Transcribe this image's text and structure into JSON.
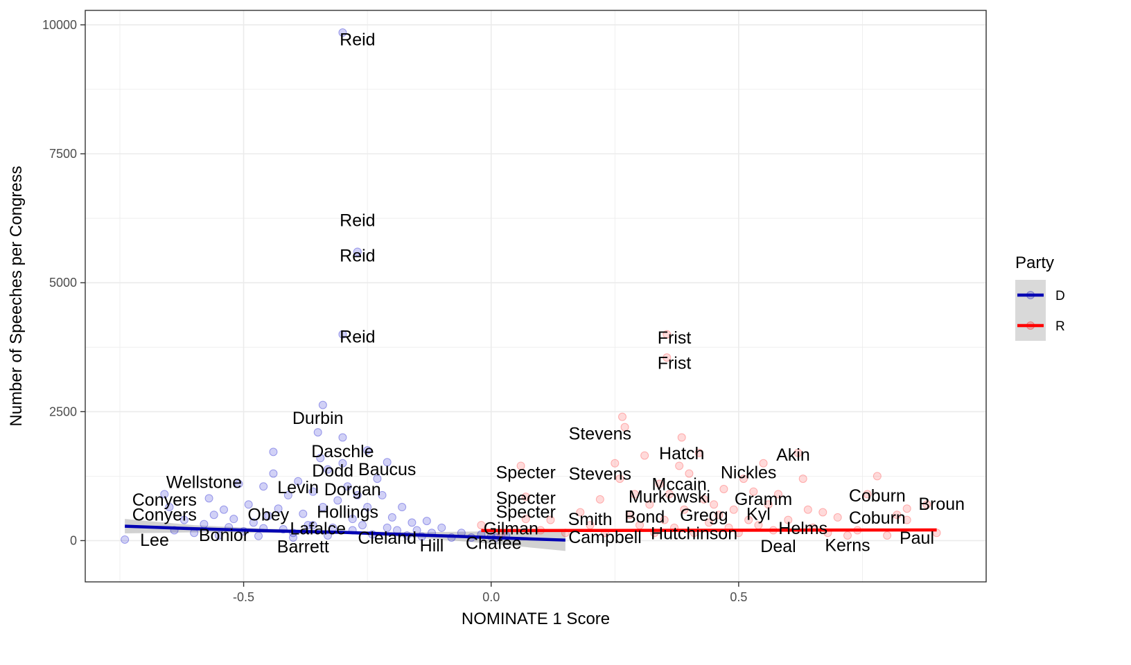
{
  "chart_data": {
    "type": "scatter",
    "xlabel": "NOMINATE 1 Score",
    "ylabel": "Number of Speeches per Congress",
    "xlim": [
      -0.82,
      1.0
    ],
    "ylim": [
      -800,
      10280
    ],
    "x_ticks": [
      -0.5,
      0.0,
      0.5
    ],
    "x_tick_labels": [
      "-0.5",
      "0.0",
      "0.5"
    ],
    "y_ticks": [
      0,
      2500,
      5000,
      7500,
      10000
    ],
    "y_tick_labels": [
      "0",
      "2500",
      "5000",
      "7500",
      "10000"
    ],
    "grid": true,
    "legend": {
      "title": "Party",
      "position": "right",
      "entries": [
        {
          "label": "D",
          "color": "#0000b3"
        },
        {
          "label": "R",
          "color": "#ff0000"
        }
      ]
    },
    "series": [
      {
        "name": "D",
        "color": "#0000b3",
        "point_color": "#0000cc",
        "trend": {
          "x": [
            -0.74,
            -0.6,
            -0.45,
            -0.3,
            -0.15,
            0.0,
            0.15
          ],
          "y": [
            280,
            230,
            190,
            160,
            110,
            60,
            10
          ],
          "ci_halfwidth": [
            140,
            70,
            40,
            30,
            50,
            120,
            210
          ]
        },
        "points": [
          [
            -0.74,
            20
          ],
          [
            -0.66,
            900
          ],
          [
            -0.65,
            650
          ],
          [
            -0.64,
            200
          ],
          [
            -0.62,
            400
          ],
          [
            -0.6,
            150
          ],
          [
            -0.58,
            320
          ],
          [
            -0.57,
            820
          ],
          [
            -0.56,
            500
          ],
          [
            -0.55,
            100
          ],
          [
            -0.54,
            600
          ],
          [
            -0.53,
            260
          ],
          [
            -0.52,
            420
          ],
          [
            -0.51,
            1100
          ],
          [
            -0.5,
            180
          ],
          [
            -0.49,
            700
          ],
          [
            -0.48,
            350
          ],
          [
            -0.47,
            90
          ],
          [
            -0.46,
            1050
          ],
          [
            -0.45,
            480
          ],
          [
            -0.44,
            1720
          ],
          [
            -0.44,
            1300
          ],
          [
            -0.43,
            620
          ],
          [
            -0.42,
            220
          ],
          [
            -0.41,
            880
          ],
          [
            -0.4,
            150
          ],
          [
            -0.39,
            1150
          ],
          [
            -0.38,
            520
          ],
          [
            -0.37,
            300
          ],
          [
            -0.36,
            950
          ],
          [
            -0.35,
            2100
          ],
          [
            -0.345,
            1600
          ],
          [
            -0.34,
            650
          ],
          [
            -0.33,
            1380
          ],
          [
            -0.32,
            250
          ],
          [
            -0.31,
            780
          ],
          [
            -0.3,
            2000
          ],
          [
            -0.3,
            1500
          ],
          [
            -0.29,
            1050
          ],
          [
            -0.28,
            420
          ],
          [
            -0.27,
            880
          ],
          [
            -0.26,
            300
          ],
          [
            -0.25,
            1750
          ],
          [
            -0.25,
            650
          ],
          [
            -0.24,
            120
          ],
          [
            -0.23,
            1200
          ],
          [
            -0.22,
            880
          ],
          [
            -0.21,
            1520
          ],
          [
            -0.2,
            450
          ],
          [
            -0.19,
            200
          ],
          [
            -0.18,
            650
          ],
          [
            -0.17,
            100
          ],
          [
            -0.16,
            350
          ],
          [
            -0.15,
            200
          ],
          [
            -0.14,
            80
          ],
          [
            -0.13,
            380
          ],
          [
            -0.12,
            150
          ],
          [
            -0.1,
            250
          ],
          [
            -0.08,
            60
          ],
          [
            -0.06,
            150
          ],
          [
            -0.04,
            60
          ],
          [
            -0.02,
            120
          ],
          [
            0.0,
            80
          ],
          [
            0.01,
            60
          ],
          [
            0.03,
            100
          ],
          [
            -0.3,
            9850
          ],
          [
            -0.27,
            5600
          ],
          [
            -0.3,
            4000
          ],
          [
            -0.34,
            2630
          ],
          [
            -0.36,
            300
          ],
          [
            -0.33,
            100
          ],
          [
            -0.4,
            60
          ],
          [
            -0.46,
            240
          ],
          [
            -0.28,
            200
          ],
          [
            -0.21,
            250
          ]
        ]
      },
      {
        "name": "R",
        "color": "#ff0000",
        "point_color": "#ff3333",
        "trend": {
          "x": [
            -0.02,
            0.2,
            0.4,
            0.6,
            0.8,
            0.9
          ],
          "y": [
            195,
            197,
            200,
            203,
            206,
            208
          ],
          "ci_halfwidth": [
            20,
            12,
            10,
            12,
            18,
            22
          ]
        },
        "points": [
          [
            -0.02,
            300
          ],
          [
            0.02,
            120
          ],
          [
            0.06,
            1450
          ],
          [
            0.07,
            850
          ],
          [
            0.07,
            420
          ],
          [
            0.1,
            200
          ],
          [
            0.12,
            400
          ],
          [
            0.15,
            150
          ],
          [
            0.18,
            550
          ],
          [
            0.2,
            300
          ],
          [
            0.22,
            800
          ],
          [
            0.23,
            150
          ],
          [
            0.25,
            1500
          ],
          [
            0.26,
            1200
          ],
          [
            0.265,
            2400
          ],
          [
            0.27,
            2200
          ],
          [
            0.28,
            500
          ],
          [
            0.29,
            900
          ],
          [
            0.3,
            300
          ],
          [
            0.31,
            1650
          ],
          [
            0.32,
            700
          ],
          [
            0.33,
            150
          ],
          [
            0.34,
            1100
          ],
          [
            0.35,
            400
          ],
          [
            0.355,
            4000
          ],
          [
            0.355,
            3550
          ],
          [
            0.36,
            900
          ],
          [
            0.37,
            250
          ],
          [
            0.38,
            1450
          ],
          [
            0.385,
            2000
          ],
          [
            0.39,
            600
          ],
          [
            0.4,
            1300
          ],
          [
            0.41,
            150
          ],
          [
            0.42,
            1700
          ],
          [
            0.43,
            800
          ],
          [
            0.44,
            350
          ],
          [
            0.45,
            700
          ],
          [
            0.46,
            500
          ],
          [
            0.47,
            1000
          ],
          [
            0.48,
            250
          ],
          [
            0.49,
            600
          ],
          [
            0.5,
            150
          ],
          [
            0.51,
            1200
          ],
          [
            0.52,
            400
          ],
          [
            0.53,
            950
          ],
          [
            0.54,
            300
          ],
          [
            0.55,
            1500
          ],
          [
            0.56,
            700
          ],
          [
            0.57,
            200
          ],
          [
            0.58,
            900
          ],
          [
            0.6,
            400
          ],
          [
            0.62,
            1700
          ],
          [
            0.63,
            1200
          ],
          [
            0.64,
            600
          ],
          [
            0.65,
            250
          ],
          [
            0.67,
            550
          ],
          [
            0.68,
            150
          ],
          [
            0.7,
            450
          ],
          [
            0.72,
            100
          ],
          [
            0.74,
            200
          ],
          [
            0.76,
            900
          ],
          [
            0.78,
            1250
          ],
          [
            0.8,
            100
          ],
          [
            0.82,
            500
          ],
          [
            0.84,
            620
          ],
          [
            0.84,
            400
          ],
          [
            0.88,
            700
          ],
          [
            0.9,
            150
          ]
        ]
      }
    ],
    "annotations": [
      {
        "text": "Reid",
        "x": -0.27,
        "y": 9720
      },
      {
        "text": "Reid",
        "x": -0.27,
        "y": 6220
      },
      {
        "text": "Reid",
        "x": -0.27,
        "y": 5530
      },
      {
        "text": "Reid",
        "x": -0.27,
        "y": 3960
      },
      {
        "text": "Frist",
        "x": 0.37,
        "y": 3940
      },
      {
        "text": "Frist",
        "x": 0.37,
        "y": 3450
      },
      {
        "text": "Durbin",
        "x": -0.35,
        "y": 2380
      },
      {
        "text": "Daschle",
        "x": -0.3,
        "y": 1740
      },
      {
        "text": "Baucus",
        "x": -0.21,
        "y": 1390
      },
      {
        "text": "Dodd",
        "x": -0.32,
        "y": 1360
      },
      {
        "text": "Levin",
        "x": -0.39,
        "y": 1040
      },
      {
        "text": "Dorgan",
        "x": -0.28,
        "y": 1000
      },
      {
        "text": "Wellstone",
        "x": -0.58,
        "y": 1140
      },
      {
        "text": "Conyers",
        "x": -0.66,
        "y": 800
      },
      {
        "text": "Conyers",
        "x": -0.66,
        "y": 510
      },
      {
        "text": "Obey",
        "x": -0.45,
        "y": 510
      },
      {
        "text": "Hollings",
        "x": -0.29,
        "y": 560
      },
      {
        "text": "Lafalce",
        "x": -0.35,
        "y": 240
      },
      {
        "text": "Bonior",
        "x": -0.54,
        "y": 110
      },
      {
        "text": "Lee",
        "x": -0.68,
        "y": 20
      },
      {
        "text": "Barrett",
        "x": -0.38,
        "y": -110
      },
      {
        "text": "Cleland",
        "x": -0.21,
        "y": 60
      },
      {
        "text": "Hill",
        "x": -0.12,
        "y": -90
      },
      {
        "text": "Chafee",
        "x": 0.005,
        "y": -40
      },
      {
        "text": "Stevens",
        "x": 0.22,
        "y": 2080
      },
      {
        "text": "Stevens",
        "x": 0.22,
        "y": 1300
      },
      {
        "text": "Specter",
        "x": 0.07,
        "y": 1330
      },
      {
        "text": "Specter",
        "x": 0.07,
        "y": 830
      },
      {
        "text": "Specter",
        "x": 0.07,
        "y": 560
      },
      {
        "text": "Gilman",
        "x": 0.04,
        "y": 240
      },
      {
        "text": "Smith",
        "x": 0.2,
        "y": 420
      },
      {
        "text": "Campbell",
        "x": 0.23,
        "y": 70
      },
      {
        "text": "Hatch",
        "x": 0.385,
        "y": 1700
      },
      {
        "text": "Mccain",
        "x": 0.38,
        "y": 1100
      },
      {
        "text": "Murkowski",
        "x": 0.36,
        "y": 860
      },
      {
        "text": "Bond",
        "x": 0.31,
        "y": 470
      },
      {
        "text": "Gregg",
        "x": 0.43,
        "y": 500
      },
      {
        "text": "Hutchinson",
        "x": 0.41,
        "y": 150
      },
      {
        "text": "Nickles",
        "x": 0.52,
        "y": 1330
      },
      {
        "text": "Akin",
        "x": 0.61,
        "y": 1670
      },
      {
        "text": "Gramm",
        "x": 0.55,
        "y": 810
      },
      {
        "text": "Kyl",
        "x": 0.54,
        "y": 520
      },
      {
        "text": "Helms",
        "x": 0.63,
        "y": 250
      },
      {
        "text": "Deal",
        "x": 0.58,
        "y": -100
      },
      {
        "text": "Kerns",
        "x": 0.72,
        "y": -80
      },
      {
        "text": "Coburn",
        "x": 0.78,
        "y": 880
      },
      {
        "text": "Coburn",
        "x": 0.78,
        "y": 450
      },
      {
        "text": "Broun",
        "x": 0.91,
        "y": 720
      },
      {
        "text": "Paul",
        "x": 0.86,
        "y": 60
      }
    ]
  }
}
